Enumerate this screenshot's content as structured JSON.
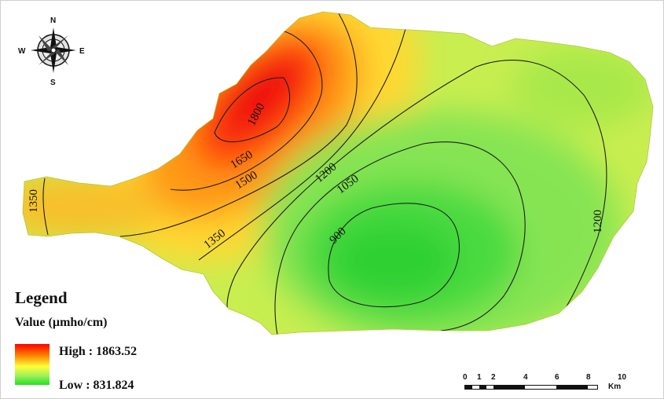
{
  "compass": {
    "n": "N",
    "s": "S",
    "e": "E",
    "w": "W"
  },
  "contour_labels": {
    "c1800": "1800",
    "c1650": "1650",
    "c1500": "1500",
    "c1350_left": "1350",
    "c1350_mid": "1350",
    "c1200_top": "1200",
    "c1050": "1050",
    "c900": "900",
    "c1200_right": "1200"
  },
  "legend": {
    "title": "Legend",
    "subtitle": "Value (µmho/cm)",
    "high_label": "High : 1863.52",
    "low_label": "Low : 831.824",
    "high_color": "#ff0000",
    "low_color": "#22e022"
  },
  "scale_bar": {
    "ticks": [
      "0",
      "1",
      "2",
      "4",
      "6",
      "8",
      "10"
    ],
    "unit": "Km"
  }
}
